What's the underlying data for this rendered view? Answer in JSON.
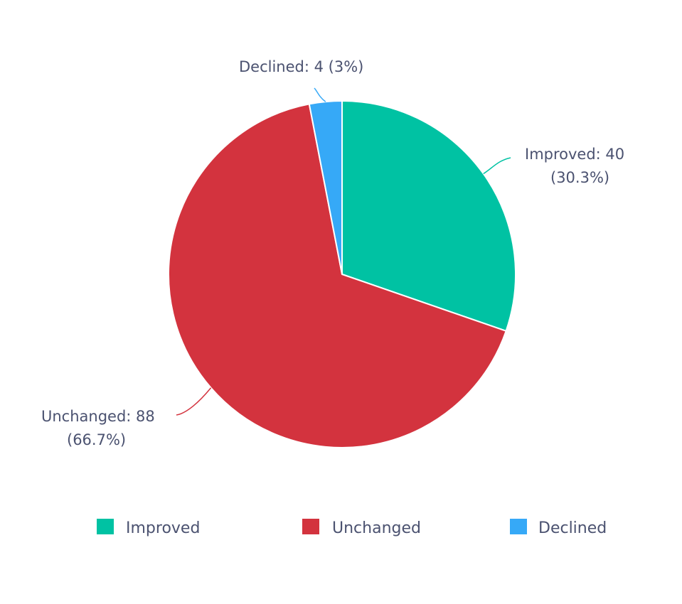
{
  "chart_data": {
    "type": "pie",
    "title": "",
    "start_angle_deg": 0,
    "direction": "clockwise",
    "slices": [
      {
        "name": "Improved",
        "value": 40,
        "percent": 30.3,
        "color": "#00c2a3",
        "label_line1": "Improved: 40",
        "label_line2": "(30.3%)"
      },
      {
        "name": "Unchanged",
        "value": 88,
        "percent": 66.7,
        "color": "#d3333e",
        "label_line1": "Unchanged: 88",
        "label_line2": "(66.7%)"
      },
      {
        "name": "Declined",
        "value": 4,
        "percent": 3,
        "color": "#36a9f7",
        "label_line1": "Declined: 4 (3%)",
        "label_line2": ""
      }
    ],
    "legend": {
      "position": "bottom",
      "items": [
        {
          "label": "Improved",
          "color": "#00c2a3"
        },
        {
          "label": "Unchanged",
          "color": "#d3333e"
        },
        {
          "label": "Declined",
          "color": "#36a9f7"
        }
      ]
    }
  }
}
